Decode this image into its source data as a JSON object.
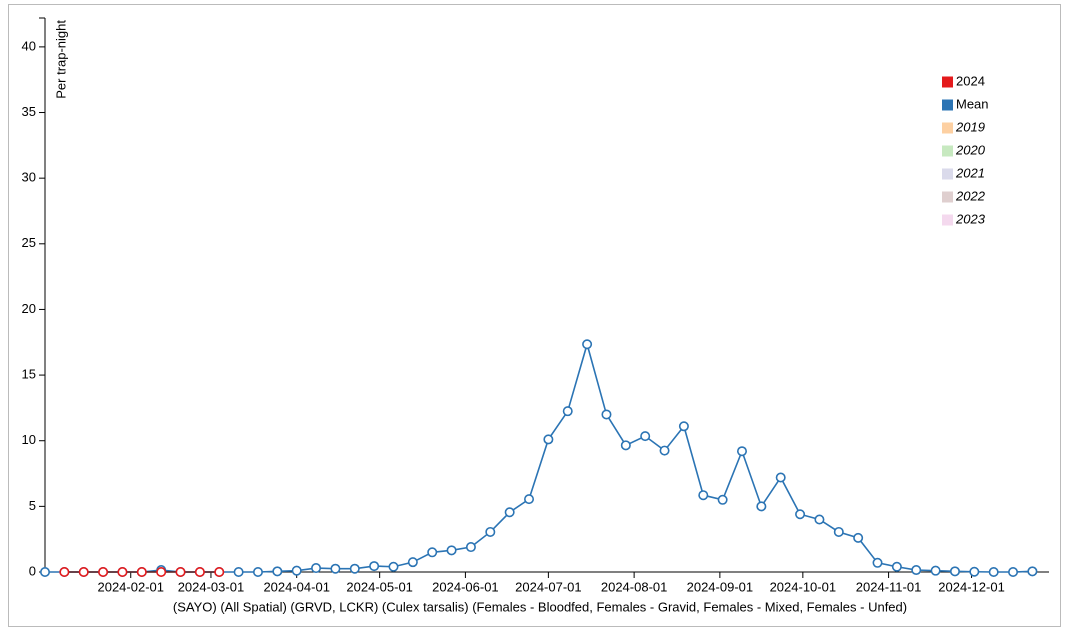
{
  "chart_data": {
    "type": "line",
    "xlabel": "(SAYO) (All Spatial) (GRVD, LCKR) (Culex tarsalis) (Females - Bloodfed, Females - Gravid, Females - Mixed, Females - Unfed)",
    "ylabel": "Per trap-night",
    "x": [
      "2024-01-01",
      "2024-01-08",
      "2024-01-15",
      "2024-01-22",
      "2024-01-29",
      "2024-02-05",
      "2024-02-12",
      "2024-02-19",
      "2024-02-26",
      "2024-03-04",
      "2024-03-11",
      "2024-03-18",
      "2024-03-25",
      "2024-04-01",
      "2024-04-08",
      "2024-04-15",
      "2024-04-22",
      "2024-04-29",
      "2024-05-06",
      "2024-05-13",
      "2024-05-20",
      "2024-05-27",
      "2024-06-03",
      "2024-06-10",
      "2024-06-17",
      "2024-06-24",
      "2024-07-01",
      "2024-07-08",
      "2024-07-15",
      "2024-07-22",
      "2024-07-29",
      "2024-08-05",
      "2024-08-12",
      "2024-08-19",
      "2024-08-26",
      "2024-09-02",
      "2024-09-09",
      "2024-09-16",
      "2024-09-23",
      "2024-09-30",
      "2024-10-07",
      "2024-10-14",
      "2024-10-21",
      "2024-10-28",
      "2024-11-04",
      "2024-11-11",
      "2024-11-18",
      "2024-11-25",
      "2024-12-02",
      "2024-12-09",
      "2024-12-16",
      "2024-12-23"
    ],
    "xlim": [
      "2024-01-01",
      "2024-12-29"
    ],
    "xticks": [
      "2024-02-01",
      "2024-03-01",
      "2024-04-01",
      "2024-05-01",
      "2024-06-01",
      "2024-07-01",
      "2024-08-01",
      "2024-09-01",
      "2024-10-01",
      "2024-11-01",
      "2024-12-01"
    ],
    "ylim": [
      0,
      42.2
    ],
    "yticks": [
      0,
      5,
      10,
      15,
      20,
      25,
      30,
      35,
      40
    ],
    "series": [
      {
        "name": "2024",
        "color": "#e41a1c",
        "values": [
          null,
          0,
          0,
          0,
          0,
          0,
          0,
          0,
          0,
          0,
          null,
          null,
          null,
          null,
          null,
          null,
          null,
          null,
          null,
          null,
          null,
          null,
          null,
          null,
          null,
          null,
          null,
          null,
          null,
          null,
          null,
          null,
          null,
          null,
          null,
          null,
          null,
          null,
          null,
          null,
          null,
          null,
          null,
          null,
          null,
          null,
          null,
          null,
          null,
          null,
          null,
          null
        ]
      },
      {
        "name": "Mean",
        "color": "#2b74b4",
        "values": [
          0,
          0,
          0,
          0,
          0,
          0,
          0.15,
          0,
          0,
          0,
          0,
          0,
          0.05,
          0.1,
          0.3,
          0.25,
          0.25,
          0.45,
          0.4,
          0.75,
          1.5,
          1.65,
          1.9,
          3.05,
          4.55,
          5.55,
          10.1,
          12.25,
          17.35,
          12.0,
          9.65,
          10.35,
          9.25,
          11.1,
          5.85,
          5.5,
          9.2,
          5.0,
          7.2,
          4.4,
          4.0,
          3.05,
          2.6,
          0.7,
          0.4,
          0.15,
          0.1,
          0.05,
          0.02,
          0,
          0,
          0.05
        ]
      },
      {
        "name": "2019",
        "color": "#fdd0a2",
        "hidden": true,
        "values": [
          null,
          null,
          null,
          null,
          null,
          null,
          null,
          null,
          null,
          null,
          null,
          null,
          null,
          null,
          null,
          null,
          null,
          null,
          null,
          null,
          null,
          null,
          null,
          null,
          null,
          null,
          null,
          null,
          null,
          null,
          null,
          null,
          null,
          null,
          null,
          null,
          null,
          null,
          null,
          null,
          null,
          null,
          null,
          null,
          null,
          null,
          null,
          null,
          null,
          null,
          null,
          null
        ]
      },
      {
        "name": "2020",
        "color": "#c7e9c0",
        "hidden": true,
        "values": [
          null,
          null,
          null,
          null,
          null,
          null,
          null,
          null,
          null,
          null,
          null,
          null,
          null,
          null,
          null,
          null,
          null,
          null,
          null,
          null,
          null,
          null,
          null,
          null,
          null,
          null,
          null,
          null,
          null,
          null,
          null,
          null,
          null,
          null,
          null,
          null,
          null,
          null,
          null,
          null,
          null,
          null,
          null,
          null,
          null,
          null,
          null,
          null,
          null,
          null,
          null,
          null
        ]
      },
      {
        "name": "2021",
        "color": "#dadaeb",
        "hidden": true,
        "values": [
          null,
          null,
          null,
          null,
          null,
          null,
          null,
          null,
          null,
          null,
          null,
          null,
          null,
          null,
          null,
          null,
          null,
          null,
          null,
          null,
          null,
          null,
          null,
          null,
          null,
          null,
          null,
          null,
          null,
          null,
          null,
          null,
          null,
          null,
          null,
          null,
          null,
          null,
          null,
          null,
          null,
          null,
          null,
          null,
          null,
          null,
          null,
          null,
          null,
          null,
          null,
          null
        ]
      },
      {
        "name": "2022",
        "color": "#dfcfcf",
        "hidden": true,
        "values": [
          null,
          null,
          null,
          null,
          null,
          null,
          null,
          null,
          null,
          null,
          null,
          null,
          null,
          null,
          null,
          null,
          null,
          null,
          null,
          null,
          null,
          null,
          null,
          null,
          null,
          null,
          null,
          null,
          null,
          null,
          null,
          null,
          null,
          null,
          null,
          null,
          null,
          null,
          null,
          null,
          null,
          null,
          null,
          null,
          null,
          null,
          null,
          null,
          null,
          null,
          null,
          null
        ]
      },
      {
        "name": "2023",
        "color": "#f4d9ee",
        "hidden": true,
        "values": [
          null,
          null,
          null,
          null,
          null,
          null,
          null,
          null,
          null,
          null,
          null,
          null,
          null,
          null,
          null,
          null,
          null,
          null,
          null,
          null,
          null,
          null,
          null,
          null,
          null,
          null,
          null,
          null,
          null,
          null,
          null,
          null,
          null,
          null,
          null,
          null,
          null,
          null,
          null,
          null,
          null,
          null,
          null,
          null,
          null,
          null,
          null,
          null,
          null,
          null,
          null,
          null
        ]
      }
    ],
    "legend": "top-right"
  }
}
